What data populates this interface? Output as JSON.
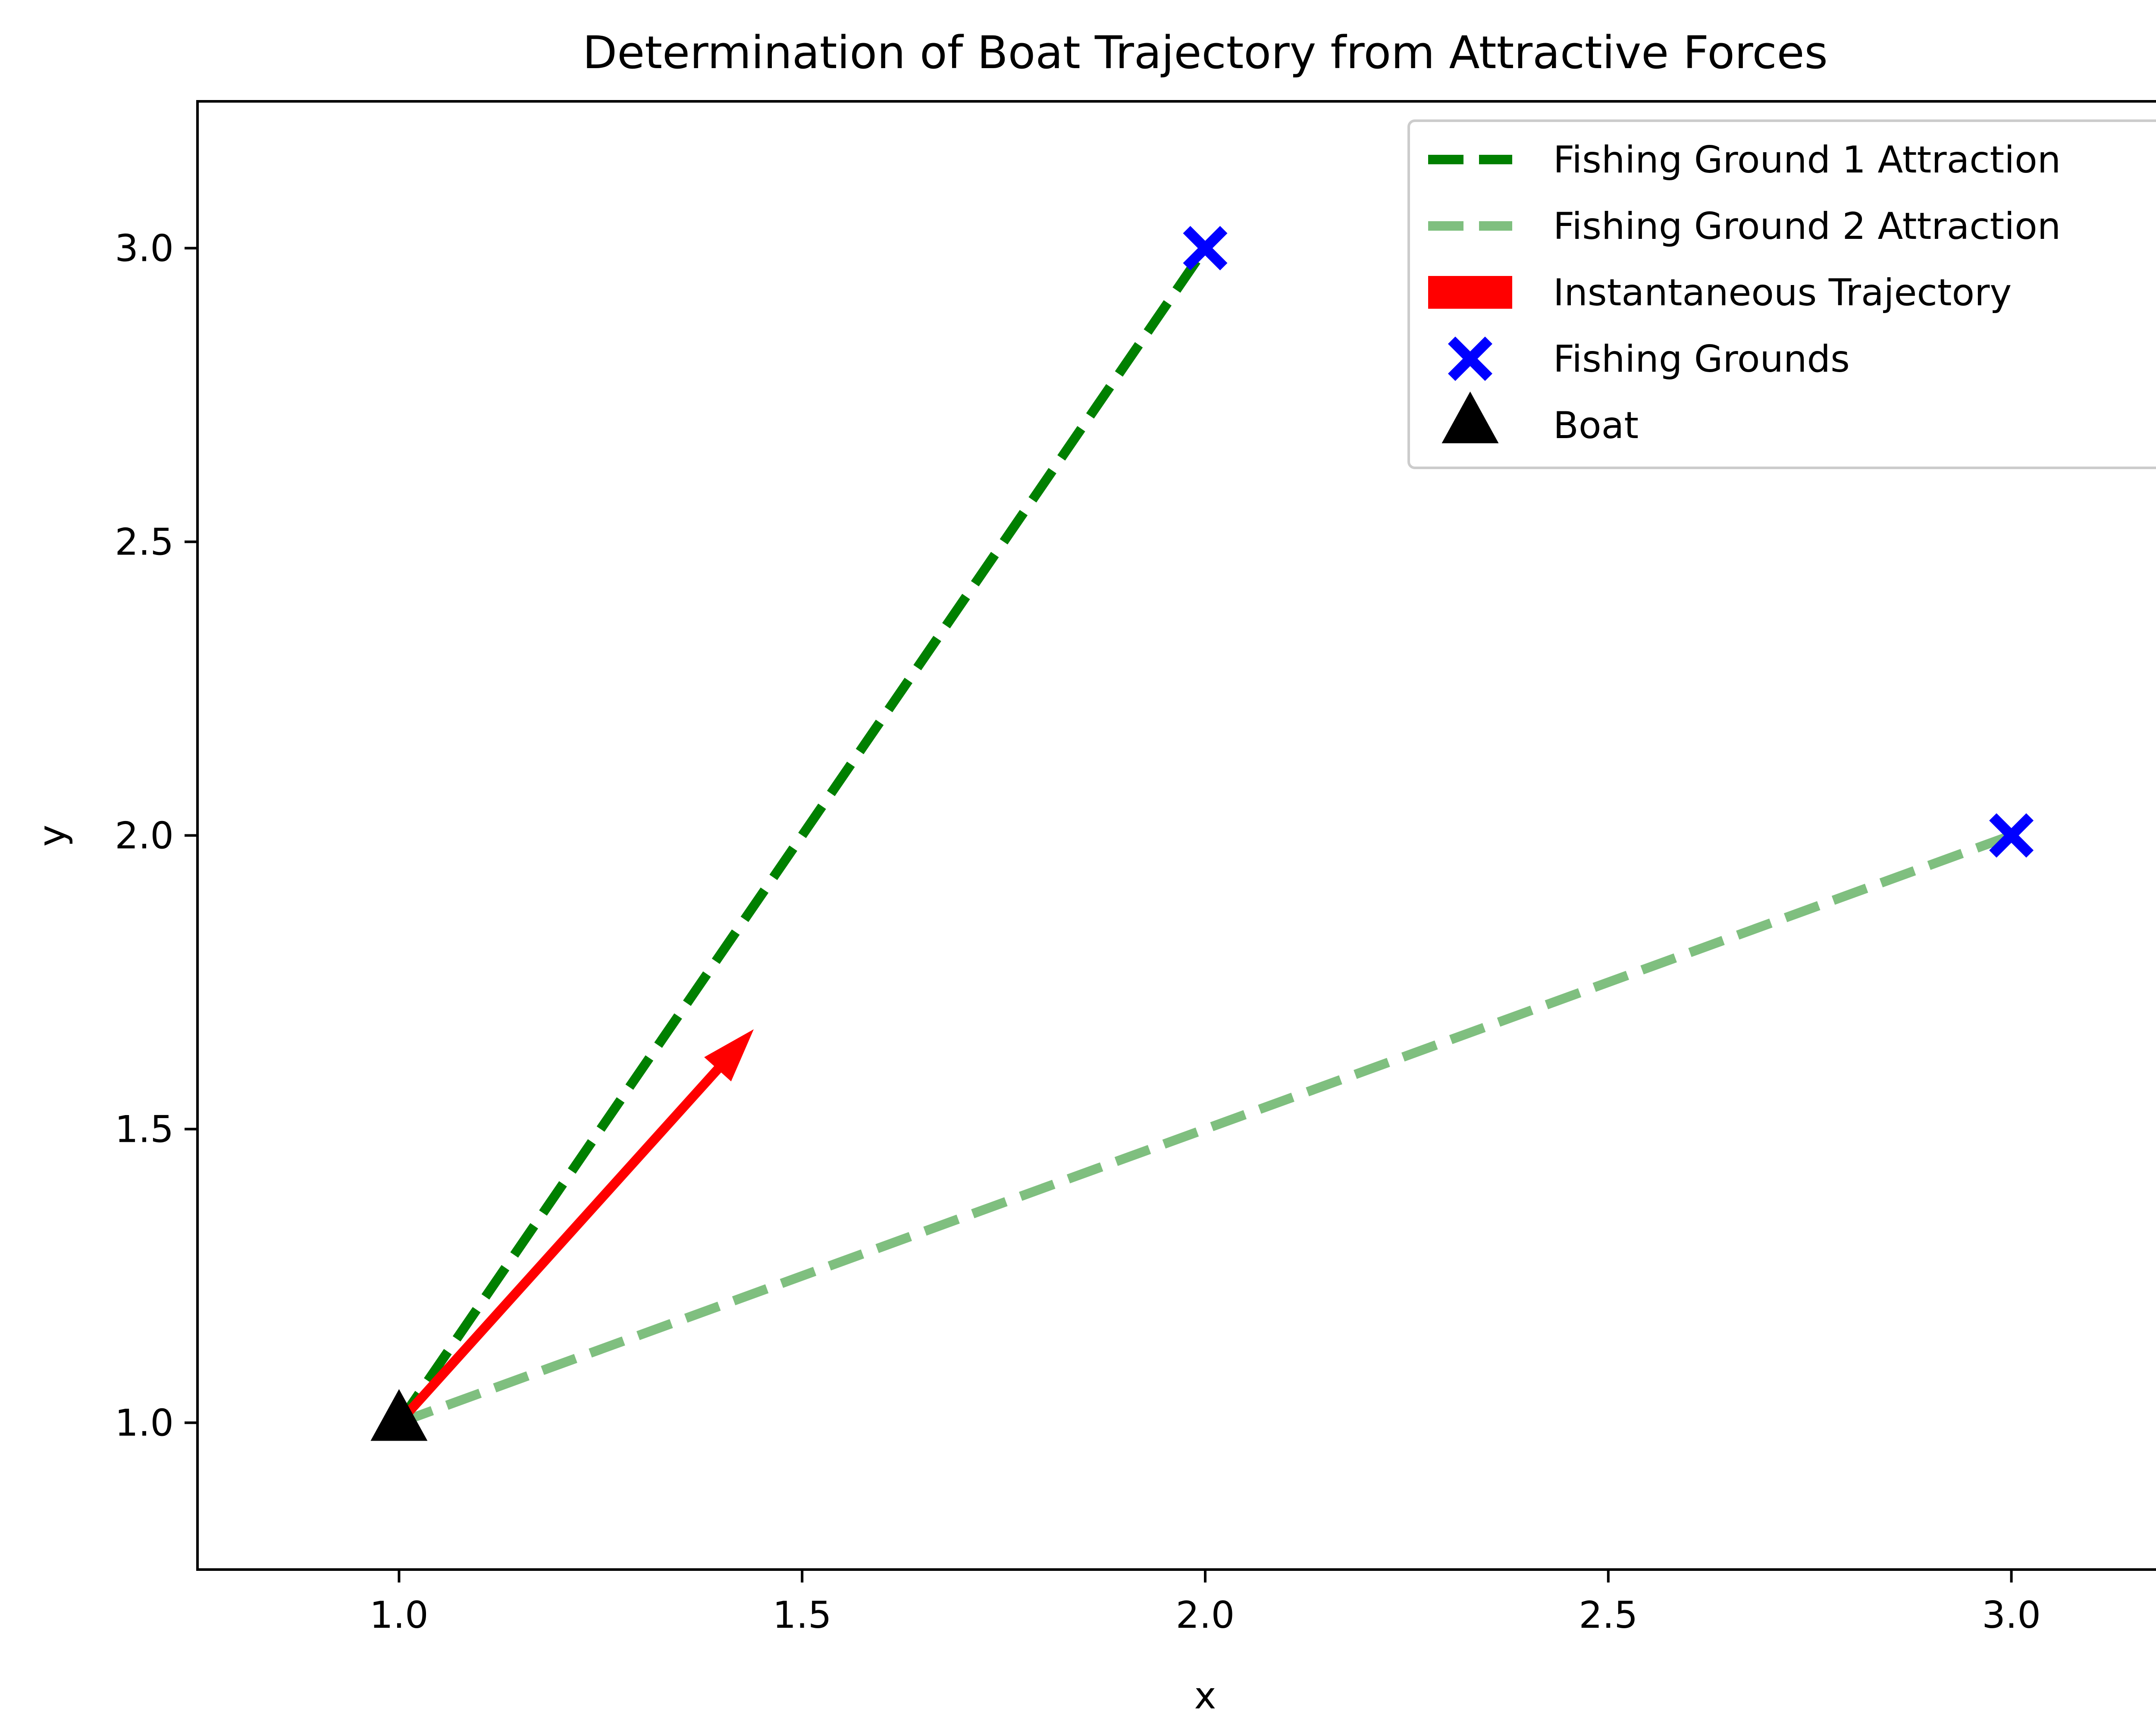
{
  "chart_data": {
    "type": "line",
    "title": "Determination of Boat Trajectory from Attractive Forces",
    "xlabel": "x",
    "ylabel": "y",
    "xlim": [
      0.75,
      3.25
    ],
    "ylim": [
      0.75,
      3.25
    ],
    "x_ticks": [
      "1.0",
      "1.5",
      "2.0",
      "2.5",
      "3.0"
    ],
    "y_ticks": [
      "1.0",
      "1.5",
      "2.0",
      "2.5",
      "3.0"
    ],
    "grid": false,
    "legend_position": "top-right",
    "series": [
      {
        "name": "Fishing Ground 1 Attraction",
        "kind": "line",
        "style": "dashed",
        "color": "#008000",
        "opacity": 1.0,
        "x": [
          1.0,
          2.0
        ],
        "y": [
          1.0,
          3.0
        ]
      },
      {
        "name": "Fishing Ground 2 Attraction",
        "kind": "line",
        "style": "dashed",
        "color": "#008000",
        "opacity": 0.5,
        "x": [
          1.0,
          3.0
        ],
        "y": [
          1.0,
          2.0
        ]
      },
      {
        "name": "Instantaneous Trajectory",
        "kind": "arrow",
        "color": "#ff0000",
        "x": [
          1.0,
          1.44
        ],
        "y": [
          1.0,
          1.67
        ]
      },
      {
        "name": "Fishing Grounds",
        "kind": "marker",
        "marker": "x-icon",
        "color": "#0000ff",
        "x": [
          2.0,
          3.0
        ],
        "y": [
          3.0,
          2.0
        ]
      },
      {
        "name": "Boat",
        "kind": "marker",
        "marker": "triangle-icon",
        "color": "#000000",
        "x": [
          1.0
        ],
        "y": [
          1.0
        ]
      }
    ]
  }
}
